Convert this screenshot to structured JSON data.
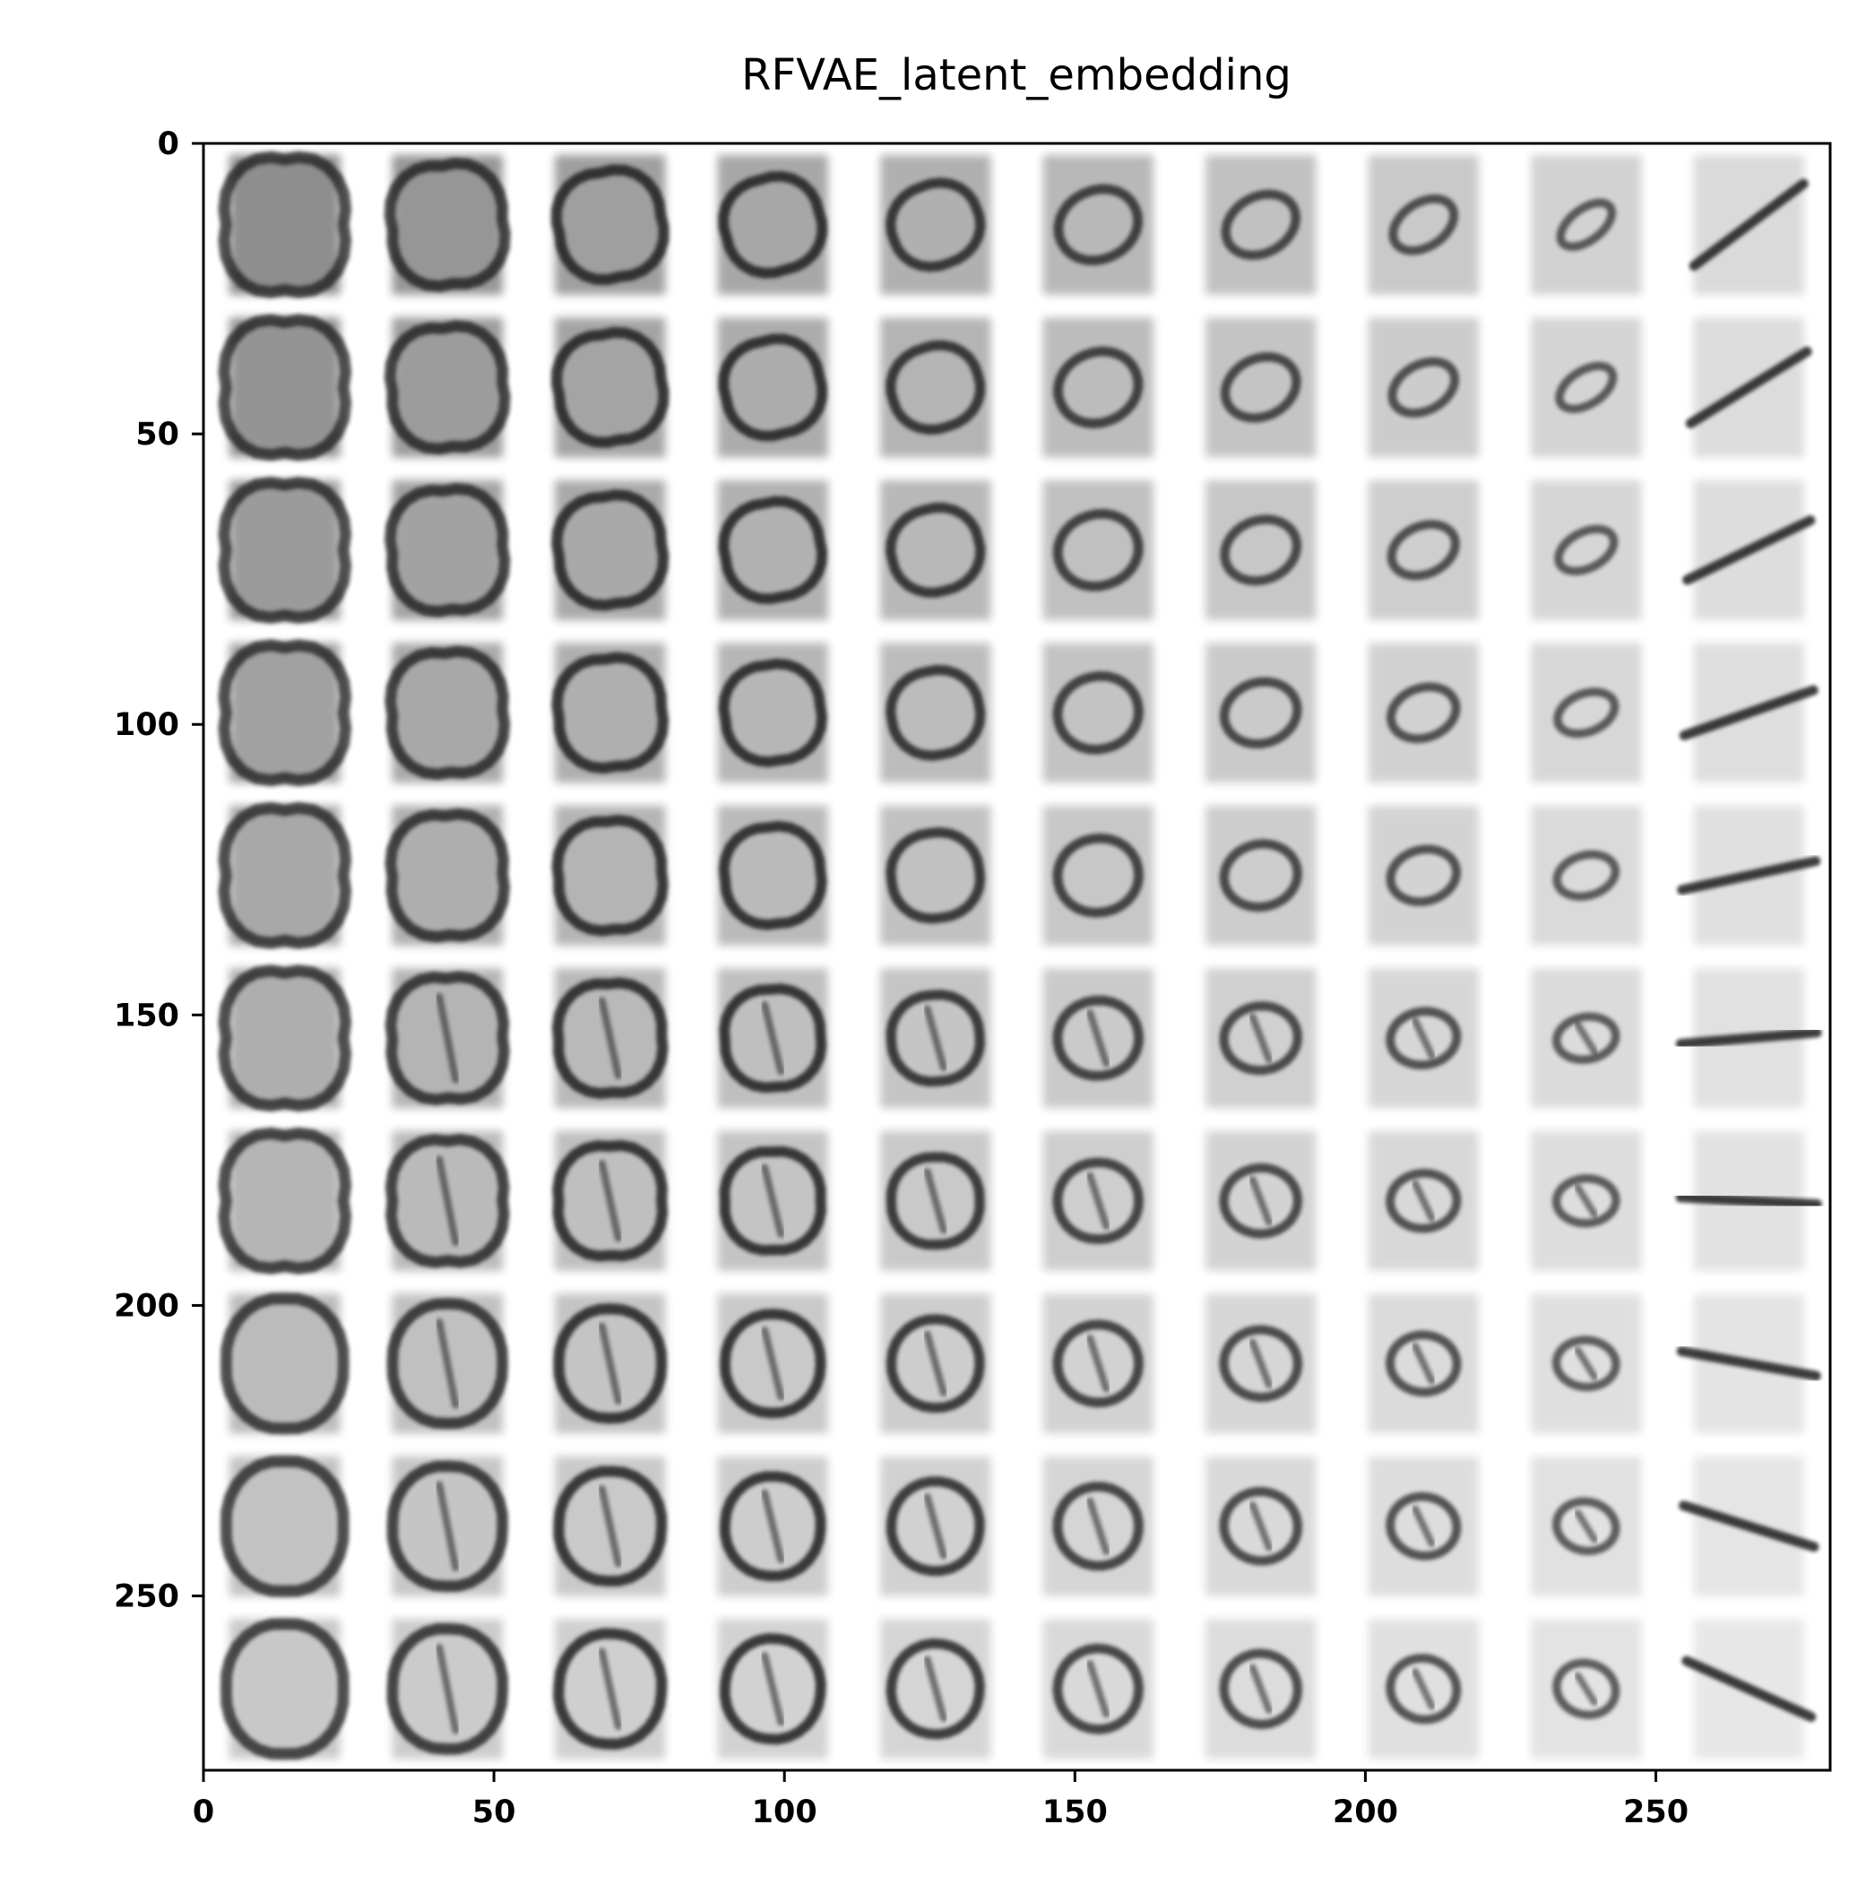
{
  "chart_data": {
    "type": "heatmap",
    "title": "RFVAE_latent_embedding",
    "xlabel": "",
    "ylabel": "",
    "xlim": [
      0,
      280
    ],
    "ylim": [
      280,
      0
    ],
    "x_ticks": [
      0,
      50,
      100,
      150,
      200,
      250
    ],
    "y_ticks": [
      0,
      50,
      100,
      150,
      200,
      250
    ],
    "grid": false,
    "colormap": "gray_r",
    "image_grid": {
      "rows": 10,
      "cols": 10,
      "tile_size": 28
    },
    "stroke_color": "#1a1a1a",
    "background_color": "#ffffff"
  }
}
